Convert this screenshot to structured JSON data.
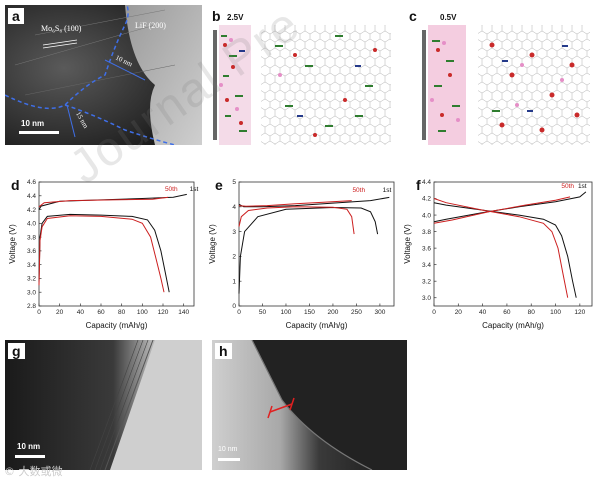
{
  "panels": {
    "a": {
      "label": "a",
      "annot_mos": "Mo₆S₈ (100)",
      "annot_lif": "LiF (200)",
      "annot_10nm": "10 nm",
      "annot_15nm": "15 nm",
      "scalebar": "10 nm"
    },
    "b": {
      "label": "b",
      "voltage": "2.5V"
    },
    "c": {
      "label": "c",
      "voltage": "0.5V"
    },
    "g": {
      "label": "g",
      "scalebar": "10 nm"
    },
    "h": {
      "label": "h",
      "scalebar": "10 nm"
    }
  },
  "watermark": "Journal Pre",
  "corner_mark": "© 大数或微",
  "chart_data": [
    {
      "panel": "d",
      "type": "line",
      "xlabel": "Capacity (mAh/g)",
      "ylabel": "Voltage (V)",
      "xlim": [
        0,
        150
      ],
      "ylim": [
        2.8,
        4.6
      ],
      "xticks": [
        0,
        20,
        40,
        60,
        80,
        100,
        120,
        140
      ],
      "yticks": [
        2.8,
        3.0,
        3.2,
        3.4,
        3.6,
        3.8,
        4.0,
        4.2,
        4.4,
        4.6
      ],
      "ytick_labels": [
        "2.8",
        "3.0",
        "3.2",
        "3.4",
        "3.6",
        "3.8",
        "4.0",
        "4.2",
        "4.4",
        "4.6"
      ],
      "series": [
        {
          "name": "1st",
          "color": "#111111",
          "label_x": 150,
          "label_y": 4.47,
          "values": [
            [
              0,
              3.15
            ],
            [
              1,
              3.8
            ],
            [
              3,
              4.0
            ],
            [
              8,
              4.1
            ],
            [
              30,
              4.13
            ],
            [
              60,
              4.12
            ],
            [
              90,
              4.1
            ],
            [
              105,
              4.05
            ],
            [
              112,
              3.9
            ],
            [
              118,
              3.6
            ],
            [
              122,
              3.3
            ],
            [
              126,
              3.0
            ]
          ]
        },
        {
          "name": "1st",
          "color": "#111111",
          "values": [
            [
              0,
              4.2
            ],
            [
              2,
              4.25
            ],
            [
              20,
              4.32
            ],
            [
              60,
              4.34
            ],
            [
              100,
              4.36
            ],
            [
              130,
              4.38
            ],
            [
              143,
              4.42
            ]
          ]
        },
        {
          "name": "50th",
          "color": "#cc1f1f",
          "label_x": 128,
          "label_y": 4.47,
          "values": [
            [
              0,
              3.1
            ],
            [
              1,
              3.75
            ],
            [
              3,
              3.95
            ],
            [
              8,
              4.07
            ],
            [
              30,
              4.11
            ],
            [
              60,
              4.1
            ],
            [
              90,
              4.06
            ],
            [
              100,
              4.0
            ],
            [
              108,
              3.8
            ],
            [
              113,
              3.5
            ],
            [
              118,
              3.2
            ],
            [
              121,
              3.0
            ]
          ]
        },
        {
          "name": "50th",
          "color": "#cc1f1f",
          "values": [
            [
              0,
              4.24
            ],
            [
              5,
              4.3
            ],
            [
              30,
              4.33
            ],
            [
              70,
              4.34
            ],
            [
              110,
              4.35
            ],
            [
              125,
              4.38
            ]
          ]
        }
      ]
    },
    {
      "panel": "e",
      "type": "line",
      "xlabel": "Capacity (mAh/g)",
      "ylabel": "Voltage (V)",
      "xlim": [
        0,
        330
      ],
      "ylim": [
        0,
        5
      ],
      "xticks": [
        0,
        50,
        100,
        150,
        200,
        250,
        300
      ],
      "yticks": [
        0,
        1,
        2,
        3,
        4,
        5
      ],
      "ytick_labels": [
        "0",
        "1",
        "2",
        "3",
        "4",
        "5"
      ],
      "series": [
        {
          "name": "1st",
          "color": "#111111",
          "label_x": 315,
          "label_y": 4.6,
          "values": [
            [
              0,
              0.5
            ],
            [
              3,
              2.0
            ],
            [
              12,
              3.0
            ],
            [
              40,
              3.6
            ],
            [
              100,
              3.9
            ],
            [
              200,
              3.97
            ],
            [
              260,
              3.95
            ],
            [
              280,
              3.8
            ],
            [
              290,
              3.4
            ],
            [
              295,
              2.9
            ]
          ]
        },
        {
          "name": "1st",
          "color": "#111111",
          "values": [
            [
              0,
              4.1
            ],
            [
              10,
              4.0
            ],
            [
              50,
              4.0
            ],
            [
              120,
              4.05
            ],
            [
              200,
              4.15
            ],
            [
              280,
              4.25
            ],
            [
              320,
              4.38
            ]
          ]
        },
        {
          "name": "50th",
          "color": "#cc1f1f",
          "label_x": 255,
          "label_y": 4.6,
          "values": [
            [
              0,
              3.2
            ],
            [
              5,
              3.6
            ],
            [
              20,
              3.85
            ],
            [
              60,
              3.95
            ],
            [
              120,
              4.0
            ],
            [
              200,
              3.98
            ],
            [
              230,
              3.9
            ],
            [
              240,
              3.6
            ],
            [
              245,
              2.9
            ]
          ]
        },
        {
          "name": "50th",
          "color": "#cc1f1f",
          "values": [
            [
              0,
              4.05
            ],
            [
              15,
              4.02
            ],
            [
              60,
              4.05
            ],
            [
              120,
              4.12
            ],
            [
              180,
              4.18
            ],
            [
              240,
              4.25
            ]
          ]
        }
      ]
    },
    {
      "panel": "f",
      "type": "line",
      "xlabel": "Capacity (mAh/g)",
      "ylabel": "Voltage (V)",
      "xlim": [
        0,
        130
      ],
      "ylim": [
        2.9,
        4.4
      ],
      "xticks": [
        0,
        20,
        40,
        60,
        80,
        100,
        120
      ],
      "yticks": [
        3.0,
        3.2,
        3.4,
        3.6,
        3.8,
        4.0,
        4.2,
        4.4
      ],
      "ytick_labels": [
        "3.0",
        "3.2",
        "3.4",
        "3.6",
        "3.8",
        "4.0",
        "4.2",
        "4.4"
      ],
      "series": [
        {
          "name": "1st",
          "color": "#111111",
          "label_x": 122,
          "label_y": 4.33,
          "values": [
            [
              0,
              4.15
            ],
            [
              10,
              4.12
            ],
            [
              40,
              4.06
            ],
            [
              70,
              4.0
            ],
            [
              90,
              3.95
            ],
            [
              100,
              3.88
            ],
            [
              105,
              3.75
            ],
            [
              110,
              3.5
            ],
            [
              114,
              3.2
            ],
            [
              117,
              3.0
            ]
          ]
        },
        {
          "name": "1st",
          "color": "#111111",
          "values": [
            [
              0,
              3.92
            ],
            [
              10,
              3.95
            ],
            [
              40,
              4.03
            ],
            [
              70,
              4.1
            ],
            [
              100,
              4.16
            ],
            [
              120,
              4.22
            ],
            [
              125,
              4.28
            ]
          ]
        },
        {
          "name": "50th",
          "color": "#cc1f1f",
          "label_x": 110,
          "label_y": 4.33,
          "values": [
            [
              0,
              4.2
            ],
            [
              10,
              4.15
            ],
            [
              40,
              4.06
            ],
            [
              70,
              3.98
            ],
            [
              90,
              3.9
            ],
            [
              97,
              3.8
            ],
            [
              102,
              3.6
            ],
            [
              106,
              3.3
            ],
            [
              110,
              3.0
            ]
          ]
        },
        {
          "name": "50th",
          "color": "#cc1f1f",
          "values": [
            [
              0,
              3.9
            ],
            [
              15,
              3.94
            ],
            [
              45,
              4.04
            ],
            [
              75,
              4.12
            ],
            [
              100,
              4.18
            ],
            [
              112,
              4.22
            ]
          ]
        }
      ]
    }
  ]
}
